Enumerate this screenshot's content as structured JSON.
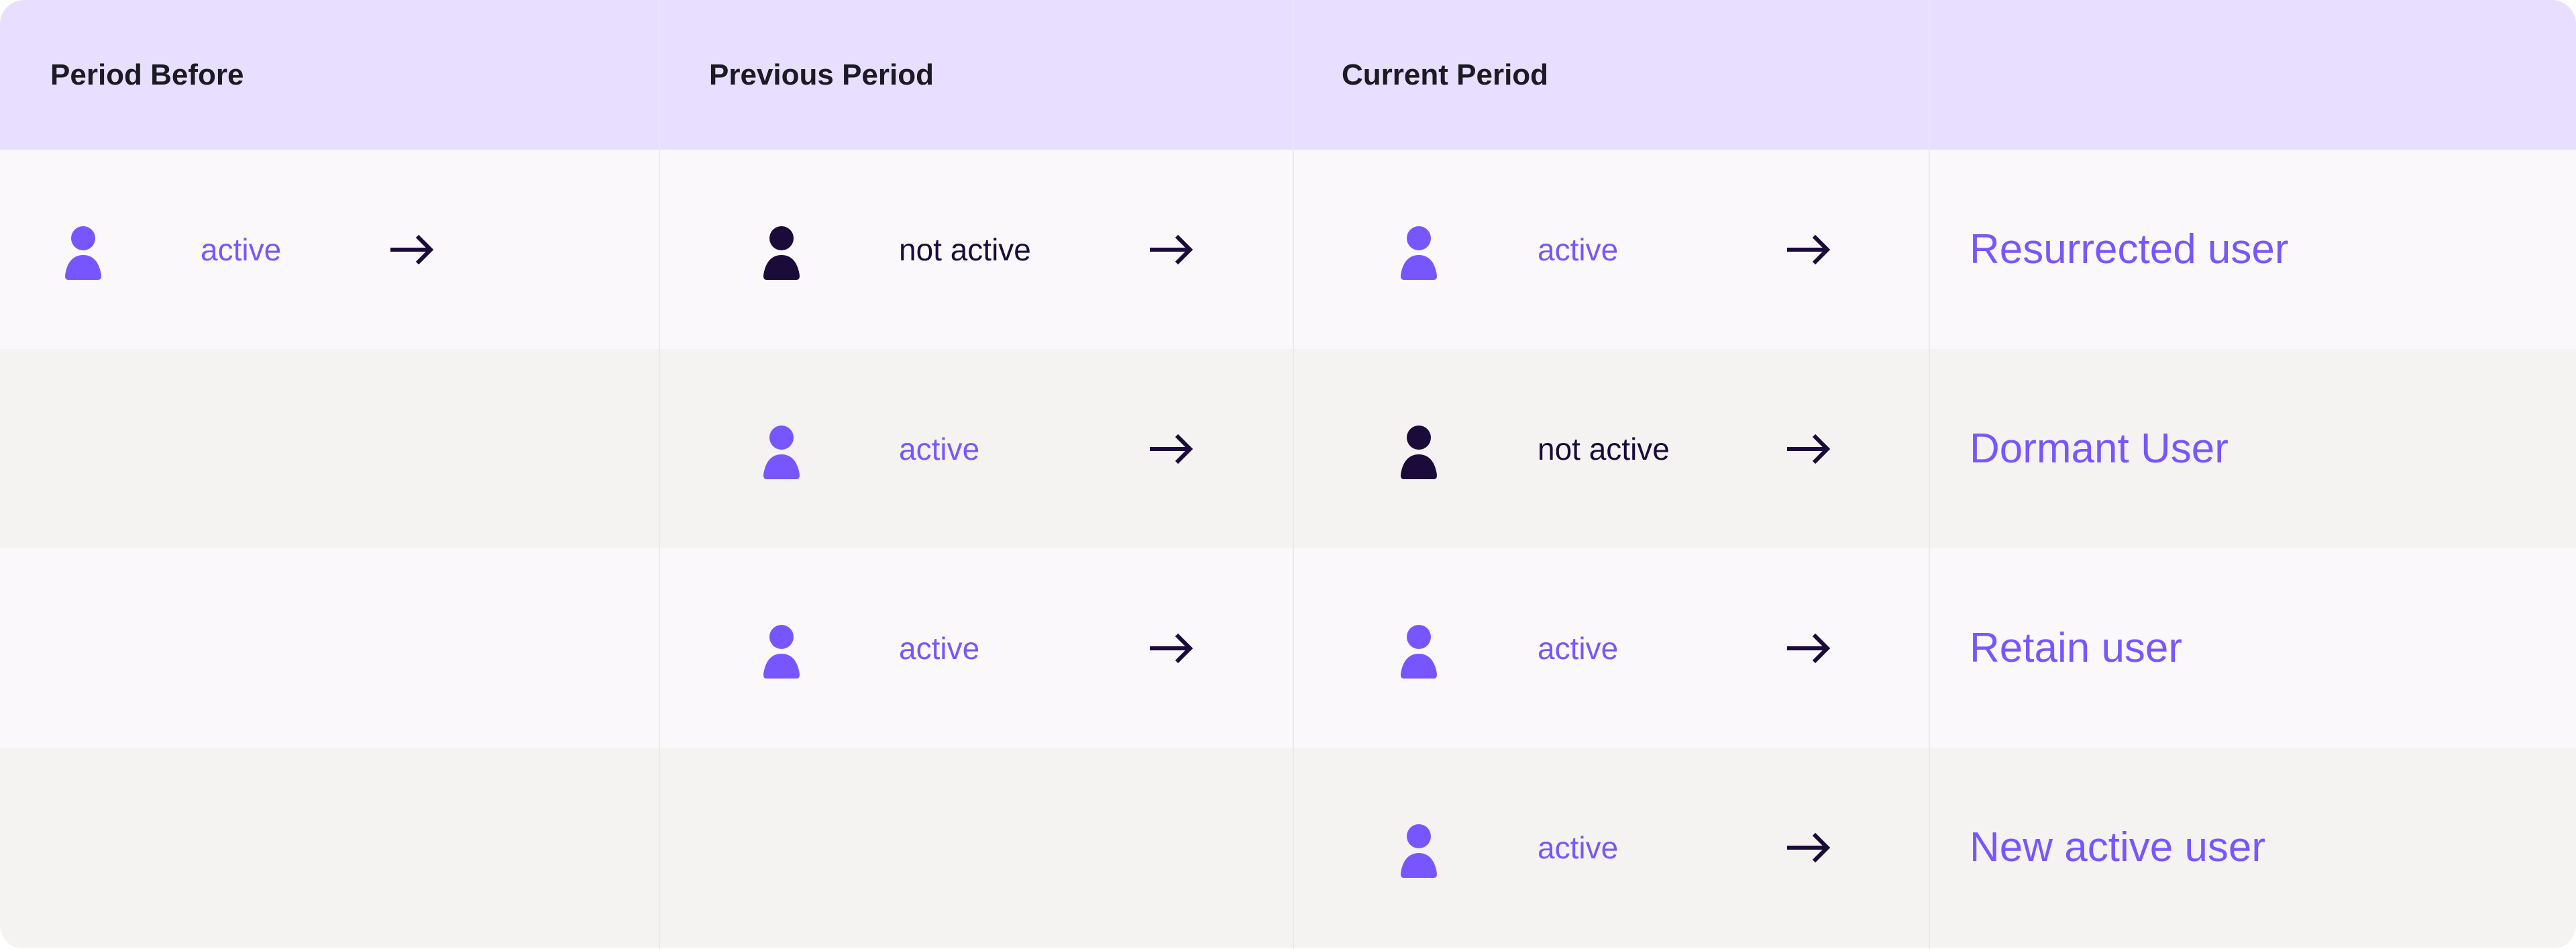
{
  "colors": {
    "accent": "#7856FF",
    "inactive": "#1B0B3B",
    "header_bg": "#E8DEFF",
    "row_odd": "#FAF8FA",
    "row_even": "#F4F3F1"
  },
  "header": {
    "columns": [
      "Period Before",
      "Previous Period",
      "Current Period",
      ""
    ]
  },
  "rows": [
    {
      "cells": [
        {
          "state": "active",
          "icon": "user-icon"
        },
        {
          "state": "not active",
          "icon": "user-icon"
        },
        {
          "state": "active",
          "icon": "user-icon"
        }
      ],
      "label": "Resurrected user"
    },
    {
      "cells": [
        null,
        {
          "state": "active",
          "icon": "user-icon"
        },
        {
          "state": "not active",
          "icon": "user-icon"
        }
      ],
      "label": "Dormant User"
    },
    {
      "cells": [
        null,
        {
          "state": "active",
          "icon": "user-icon"
        },
        {
          "state": "active",
          "icon": "user-icon"
        }
      ],
      "label": "Retain user"
    },
    {
      "cells": [
        null,
        null,
        {
          "state": "active",
          "icon": "user-icon"
        }
      ],
      "label": "New active user"
    }
  ],
  "arrow_icon": "arrow-right-icon"
}
